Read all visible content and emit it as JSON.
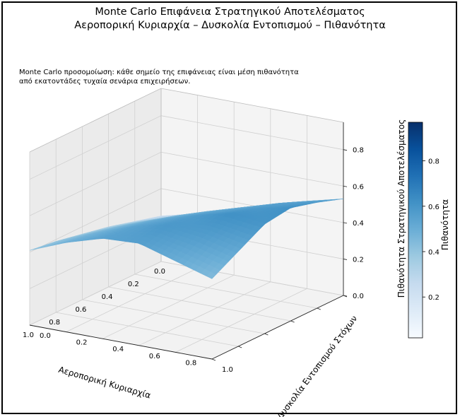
{
  "chart_data": {
    "type": "surface3d",
    "title": "Monte Carlo Επιφάνεια Στρατηγικού Αποτελέσματος",
    "subtitle": "Αεροπορική Κυριαρχία – Δυσκολία Εντοπισμού – Πιθανότητα",
    "annotation_lines": [
      "Monte Carlo προσομοίωση: κάθε σημείο της επιφάνειας είναι μέση πιθανότητα",
      "από εκατοντάδες τυχαία σενάρια επιχειρήσεων."
    ],
    "xlabel": "Αεροπορική Κυριαρχία",
    "ylabel": "Δυσκολία Εντοπισμού Στόχων",
    "zlabel": "",
    "xlim": [
      0,
      1
    ],
    "ylim": [
      0,
      1
    ],
    "zlim": [
      0,
      0.95
    ],
    "xticks": [
      "0.0",
      "0.2",
      "0.4",
      "0.6",
      "0.8",
      "1.0"
    ],
    "yticks": [
      "0.0",
      "0.2",
      "0.4",
      "0.6",
      "0.8",
      "1.0"
    ],
    "zticks": [
      "0.0",
      "0.2",
      "0.4",
      "0.6",
      "0.8"
    ],
    "surface": {
      "x": [
        0.0,
        0.2,
        0.4,
        0.6,
        0.8,
        1.0
      ],
      "y": [
        0.0,
        0.2,
        0.4,
        0.6,
        0.8,
        1.0
      ],
      "z": [
        [
          0.25,
          0.3,
          0.36,
          0.42,
          0.48,
          0.53
        ],
        [
          0.29,
          0.35,
          0.42,
          0.48,
          0.54,
          0.58
        ],
        [
          0.33,
          0.4,
          0.47,
          0.53,
          0.58,
          0.62
        ],
        [
          0.36,
          0.44,
          0.51,
          0.57,
          0.62,
          0.6
        ],
        [
          0.39,
          0.47,
          0.54,
          0.59,
          0.57,
          0.52
        ],
        [
          0.41,
          0.49,
          0.55,
          0.56,
          0.5,
          0.44
        ]
      ]
    },
    "colorbar": {
      "label": "Πιθανότητα Στρατηγικού Αποτελέσματος\nΠιθανότητα",
      "ticks": [
        "0.2",
        "0.4",
        "0.6",
        "0.8"
      ],
      "range": [
        0.02,
        0.97
      ],
      "colormap": "Blues",
      "color_low": "#f7fbff",
      "color_high": "#08306b"
    },
    "grid": true
  }
}
